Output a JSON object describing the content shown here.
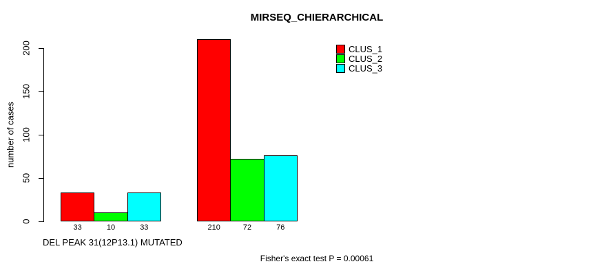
{
  "chart_data": {
    "type": "bar",
    "title": "MIRSEQ_CHIERARCHICAL",
    "ylabel": "number of cases",
    "xlabel": "DEL PEAK 31(12P13.1) MUTATED",
    "footnote": "Fisher's exact test P = 0.00061",
    "ylim": [
      0,
      200
    ],
    "yticks": [
      0,
      50,
      100,
      150,
      200
    ],
    "grid": false,
    "legend_position": "top-right-inside",
    "background_color": "#ffffff",
    "axis_color": "#000000",
    "text_color": "#000000",
    "bar_border_color": "#000000",
    "group_count": 2,
    "bar_value_labels_shown": true,
    "series": [
      {
        "name": "CLUS_1",
        "color": "#ff0000",
        "values": [
          33,
          210
        ]
      },
      {
        "name": "CLUS_2",
        "color": "#00ff00",
        "values": [
          10,
          72
        ]
      },
      {
        "name": "CLUS_3",
        "color": "#00ffff",
        "values": [
          33,
          76
        ]
      }
    ]
  }
}
